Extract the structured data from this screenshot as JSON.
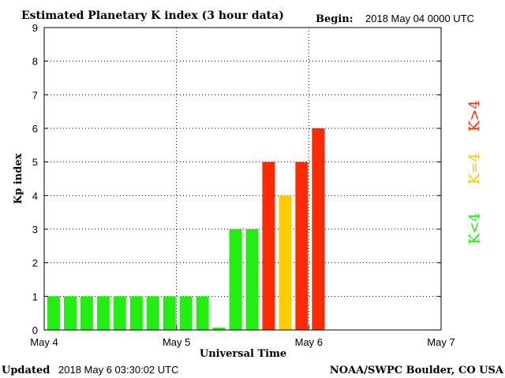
{
  "header": {
    "title": "Estimated Planetary K index (3 hour data)",
    "begin_label": "Begin:",
    "begin_value": "2018 May 04 0000 UTC"
  },
  "footer": {
    "updated_label": "Updated",
    "updated_value": "2018 May  6 03:30:02 UTC",
    "source": "NOAA/SWPC Boulder, CO USA"
  },
  "chart_data": {
    "type": "bar",
    "title": "Estimated Planetary K index (3 hour data)",
    "xlabel": "Universal Time",
    "ylabel": "Kp index",
    "ylim": [
      0,
      9
    ],
    "yticks": [
      0,
      1,
      2,
      3,
      4,
      5,
      6,
      7,
      8,
      9
    ],
    "xticks": [
      "May 4",
      "May 5",
      "May 6",
      "May 7"
    ],
    "x_period_hours": 3,
    "slots_total": 24,
    "values": [
      1,
      1,
      1,
      1,
      1,
      1,
      1,
      1,
      1,
      1,
      0.07,
      3,
      3,
      5,
      4,
      5,
      6
    ],
    "grid": true,
    "colors": {
      "low": "#22ee11",
      "equal": "#ffcc00",
      "high": "#ff2a00"
    },
    "legend": [
      {
        "label": "K>4",
        "color": "#ff2a00"
      },
      {
        "label": "K=4",
        "color": "#ffcc00"
      },
      {
        "label": "K<4",
        "color": "#22ee11"
      }
    ],
    "legend_placement": "right"
  }
}
